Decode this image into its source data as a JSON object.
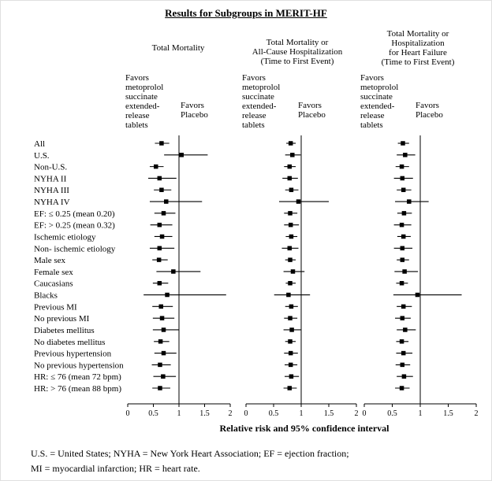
{
  "title": "Results for Subgroups in MERIT-HF",
  "panels": [
    {
      "header": "Total Mortality",
      "favors_left": "Favors\nmetoprolol\nsuccinate\nextended-\nrelease\ntablets",
      "favors_right": "Favors\nPlacebo"
    },
    {
      "header": "Total Mortality or\nAll-Cause Hospitalization\n(Time to First Event)",
      "favors_left": "Favors\nmetoprolol\nsuccinate\nextended-\nrelease\ntablets",
      "favors_right": "Favors\nPlacebo"
    },
    {
      "header": "Total Mortality or\nHospitalization\nfor Heart Failure\n(Time to First Event)",
      "favors_left": "Favors\nmetoprolol\nsuccinate\nextended-\nrelease\ntablets",
      "favors_right": "Favors\nPlacebo"
    }
  ],
  "axis_label": "Relative risk and 95% confidence interval",
  "footnote": "U.S. = United States;  NYHA = New York Heart Association;  EF = ejection fraction;\nMI = myocardial infarction; HR = heart rate.",
  "chart_data": {
    "type": "scatter",
    "subtype": "forest-plot",
    "title": "Results for Subgroups in MERIT-HF",
    "xlabel": "Relative risk and 95% confidence interval",
    "xlim": [
      0,
      2
    ],
    "xticks": [
      0,
      0.5,
      1,
      1.5,
      2
    ],
    "refline": 1,
    "marker": "filled-square",
    "marker_color": "#000000",
    "categories": [
      "All",
      "U.S.",
      "Non-U.S.",
      "NYHA II",
      "NYHA III",
      "NYHA IV",
      "EF: ≤ 0.25 (mean 0.20)",
      "EF: > 0.25 (mean 0.32)",
      "Ischemic etiology",
      "Non- ischemic etiology",
      "Male sex",
      "Female sex",
      "Caucasians",
      "Blacks",
      "Previous MI",
      "No previous MI",
      "Diabetes mellitus",
      "No diabetes mellitus",
      "Previous hypertension",
      "No previous hypertension",
      "HR: ≤ 76 (mean 72 bpm)",
      "HR: > 76 (mean 88 bpm)"
    ],
    "panels": [
      {
        "name": "Total Mortality",
        "estimates": [
          0.66,
          1.05,
          0.55,
          0.62,
          0.66,
          0.75,
          0.7,
          0.62,
          0.67,
          0.62,
          0.61,
          0.89,
          0.62,
          0.77,
          0.65,
          0.67,
          0.7,
          0.64,
          0.7,
          0.63,
          0.69,
          0.63
        ],
        "ci_low": [
          0.53,
          0.71,
          0.43,
          0.4,
          0.51,
          0.43,
          0.52,
          0.44,
          0.52,
          0.43,
          0.48,
          0.56,
          0.49,
          0.31,
          0.48,
          0.49,
          0.49,
          0.51,
          0.52,
          0.47,
          0.5,
          0.48
        ],
        "ci_high": [
          0.81,
          1.56,
          0.7,
          0.95,
          0.85,
          1.45,
          0.93,
          0.87,
          0.87,
          0.91,
          0.78,
          1.42,
          0.79,
          1.92,
          0.88,
          0.91,
          1.0,
          0.81,
          0.95,
          0.84,
          0.94,
          0.83
        ]
      },
      {
        "name": "Total Mortality or All-Cause Hospitalization (Time to First Event)",
        "estimates": [
          0.81,
          0.84,
          0.79,
          0.79,
          0.82,
          0.95,
          0.8,
          0.81,
          0.82,
          0.79,
          0.8,
          0.85,
          0.8,
          0.77,
          0.82,
          0.8,
          0.83,
          0.8,
          0.81,
          0.81,
          0.82,
          0.79
        ],
        "ci_low": [
          0.73,
          0.71,
          0.69,
          0.66,
          0.71,
          0.6,
          0.69,
          0.69,
          0.72,
          0.65,
          0.71,
          0.68,
          0.72,
          0.51,
          0.71,
          0.69,
          0.68,
          0.71,
          0.69,
          0.7,
          0.7,
          0.68
        ],
        "ci_high": [
          0.9,
          0.99,
          0.9,
          0.94,
          0.95,
          1.5,
          0.93,
          0.96,
          0.93,
          0.95,
          0.9,
          1.06,
          0.9,
          1.16,
          0.94,
          0.93,
          1.0,
          0.9,
          0.94,
          0.93,
          0.96,
          0.92
        ]
      },
      {
        "name": "Total Mortality or Hospitalization for Heart Failure (Time to First Event)",
        "estimates": [
          0.69,
          0.73,
          0.67,
          0.68,
          0.7,
          0.8,
          0.71,
          0.67,
          0.7,
          0.68,
          0.68,
          0.72,
          0.67,
          0.95,
          0.7,
          0.68,
          0.73,
          0.67,
          0.7,
          0.68,
          0.71,
          0.67
        ],
        "ci_low": [
          0.6,
          0.58,
          0.56,
          0.53,
          0.58,
          0.55,
          0.59,
          0.53,
          0.59,
          0.53,
          0.58,
          0.54,
          0.57,
          0.52,
          0.58,
          0.55,
          0.58,
          0.57,
          0.57,
          0.56,
          0.58,
          0.55
        ],
        "ci_high": [
          0.8,
          0.91,
          0.8,
          0.87,
          0.84,
          1.15,
          0.85,
          0.84,
          0.83,
          0.86,
          0.8,
          0.96,
          0.78,
          1.74,
          0.85,
          0.83,
          0.92,
          0.79,
          0.86,
          0.82,
          0.87,
          0.81
        ]
      }
    ]
  }
}
